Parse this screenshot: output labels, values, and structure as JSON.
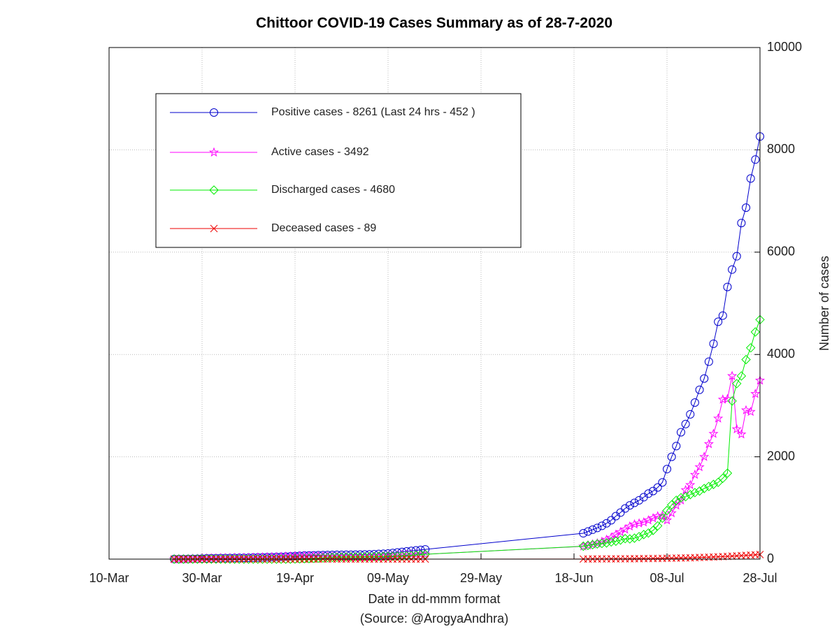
{
  "chart_data": {
    "type": "line",
    "title": "Chittoor COVID-19 Cases Summary as of 28-7-2020",
    "x_label": "Date in dd-mmm format",
    "source": "(Source: @ArogyaAndhra)",
    "y_label": "Number of cases",
    "y_axis_side": "right",
    "grid": true,
    "legend_position": "upper-left",
    "xlim": [
      "10-Mar",
      "28-Jul"
    ],
    "xticks": [
      "10-Mar",
      "30-Mar",
      "19-Apr",
      "09-May",
      "29-May",
      "18-Jun",
      "08-Jul",
      "28-Jul"
    ],
    "ylim": [
      0,
      10000
    ],
    "yticks": [
      0,
      2000,
      4000,
      6000,
      8000,
      10000
    ],
    "x": [
      "24-Mar",
      "25-Mar",
      "26-Mar",
      "27-Mar",
      "28-Mar",
      "29-Mar",
      "30-Mar",
      "31-Mar",
      "01-Apr",
      "02-Apr",
      "03-Apr",
      "04-Apr",
      "05-Apr",
      "06-Apr",
      "07-Apr",
      "08-Apr",
      "09-Apr",
      "10-Apr",
      "11-Apr",
      "12-Apr",
      "13-Apr",
      "14-Apr",
      "15-Apr",
      "16-Apr",
      "17-Apr",
      "18-Apr",
      "19-Apr",
      "20-Apr",
      "21-Apr",
      "22-Apr",
      "23-Apr",
      "24-Apr",
      "25-Apr",
      "26-Apr",
      "27-Apr",
      "28-Apr",
      "29-Apr",
      "30-Apr",
      "01-May",
      "02-May",
      "03-May",
      "04-May",
      "05-May",
      "06-May",
      "07-May",
      "08-May",
      "09-May",
      "10-May",
      "11-May",
      "12-May",
      "13-May",
      "14-May",
      "15-May",
      "16-May",
      "17-May",
      "20-Jun",
      "21-Jun",
      "22-Jun",
      "23-Jun",
      "24-Jun",
      "25-Jun",
      "26-Jun",
      "27-Jun",
      "28-Jun",
      "29-Jun",
      "30-Jun",
      "01-Jul",
      "02-Jul",
      "03-Jul",
      "04-Jul",
      "05-Jul",
      "06-Jul",
      "07-Jul",
      "08-Jul",
      "09-Jul",
      "10-Jul",
      "11-Jul",
      "12-Jul",
      "13-Jul",
      "14-Jul",
      "15-Jul",
      "16-Jul",
      "17-Jul",
      "18-Jul",
      "19-Jul",
      "20-Jul",
      "21-Jul",
      "22-Jul",
      "23-Jul",
      "24-Jul",
      "25-Jul",
      "26-Jul",
      "27-Jul",
      "28-Jul"
    ],
    "series": [
      {
        "name": "Positive cases - 8261 (Last 24 hrs - 452 )",
        "color": "#0000cc",
        "marker": "circle",
        "values": [
          1,
          1,
          1,
          3,
          5,
          6,
          10,
          15,
          17,
          17,
          20,
          20,
          22,
          24,
          25,
          26,
          28,
          30,
          33,
          35,
          37,
          40,
          42,
          45,
          50,
          55,
          60,
          65,
          70,
          72,
          74,
          76,
          78,
          80,
          82,
          83,
          84,
          85,
          86,
          87,
          88,
          90,
          92,
          95,
          100,
          105,
          110,
          120,
          130,
          140,
          150,
          160,
          170,
          180,
          190,
          505,
          540,
          575,
          610,
          650,
          700,
          760,
          840,
          910,
          990,
          1050,
          1100,
          1150,
          1210,
          1280,
          1330,
          1400,
          1500,
          1760,
          2000,
          2210,
          2480,
          2640,
          2830,
          3060,
          3310,
          3530,
          3860,
          4210,
          4640,
          4760,
          5320,
          5660,
          5920,
          6570,
          6870,
          7440,
          7810,
          8261
        ]
      },
      {
        "name": "Active cases - 3492",
        "color": "#ff00ff",
        "marker": "star",
        "values": [
          1,
          1,
          1,
          3,
          5,
          6,
          10,
          15,
          17,
          17,
          20,
          20,
          22,
          24,
          25,
          26,
          28,
          30,
          33,
          35,
          37,
          40,
          42,
          45,
          50,
          55,
          58,
          60,
          62,
          62,
          60,
          58,
          55,
          52,
          50,
          48,
          46,
          45,
          45,
          44,
          44,
          44,
          45,
          46,
          50,
          54,
          58,
          66,
          74,
          80,
          86,
          90,
          92,
          95,
          96,
          250,
          270,
          290,
          310,
          340,
          380,
          420,
          480,
          530,
          580,
          640,
          680,
          700,
          720,
          760,
          800,
          840,
          850,
          760,
          900,
          1050,
          1150,
          1350,
          1450,
          1650,
          1800,
          2000,
          2250,
          2450,
          2750,
          3120,
          3130,
          3580,
          2540,
          2440,
          2910,
          2880,
          3230,
          3492
        ]
      },
      {
        "name": "Discharged cases - 4680",
        "color": "#00ee00",
        "marker": "diamond",
        "values": [
          0,
          0,
          0,
          0,
          0,
          0,
          0,
          0,
          0,
          0,
          0,
          0,
          0,
          0,
          0,
          0,
          0,
          0,
          0,
          0,
          0,
          0,
          0,
          0,
          0,
          0,
          2,
          5,
          8,
          10,
          14,
          18,
          23,
          28,
          32,
          35,
          38,
          40,
          41,
          43,
          44,
          46,
          47,
          49,
          50,
          51,
          52,
          54,
          56,
          60,
          64,
          70,
          78,
          85,
          94,
          253,
          268,
          282,
          297,
          306,
          316,
          335,
          350,
          372,
          400,
          395,
          410,
          440,
          480,
          510,
          560,
          650,
          800,
          950,
          1060,
          1150,
          1200,
          1220,
          1260,
          1300,
          1330,
          1380,
          1420,
          1460,
          1500,
          1580,
          1680,
          3090,
          3430,
          3580,
          3900,
          4130,
          4440,
          4680
        ]
      },
      {
        "name": "Deceased cases - 89",
        "color": "#ee0000",
        "marker": "x",
        "values": [
          0,
          0,
          0,
          0,
          0,
          0,
          0,
          0,
          0,
          0,
          0,
          0,
          0,
          0,
          0,
          0,
          0,
          0,
          0,
          0,
          0,
          0,
          0,
          0,
          0,
          0,
          0,
          0,
          0,
          0,
          0,
          0,
          0,
          0,
          0,
          0,
          0,
          0,
          0,
          0,
          0,
          0,
          0,
          0,
          0,
          0,
          0,
          0,
          0,
          0,
          0,
          0,
          0,
          0,
          0,
          2,
          2,
          3,
          3,
          4,
          4,
          5,
          5,
          6,
          6,
          7,
          8,
          9,
          10,
          11,
          12,
          13,
          14,
          16,
          18,
          20,
          22,
          24,
          26,
          29,
          32,
          35,
          38,
          41,
          45,
          49,
          53,
          58,
          63,
          68,
          73,
          78,
          84,
          89
        ]
      }
    ]
  }
}
